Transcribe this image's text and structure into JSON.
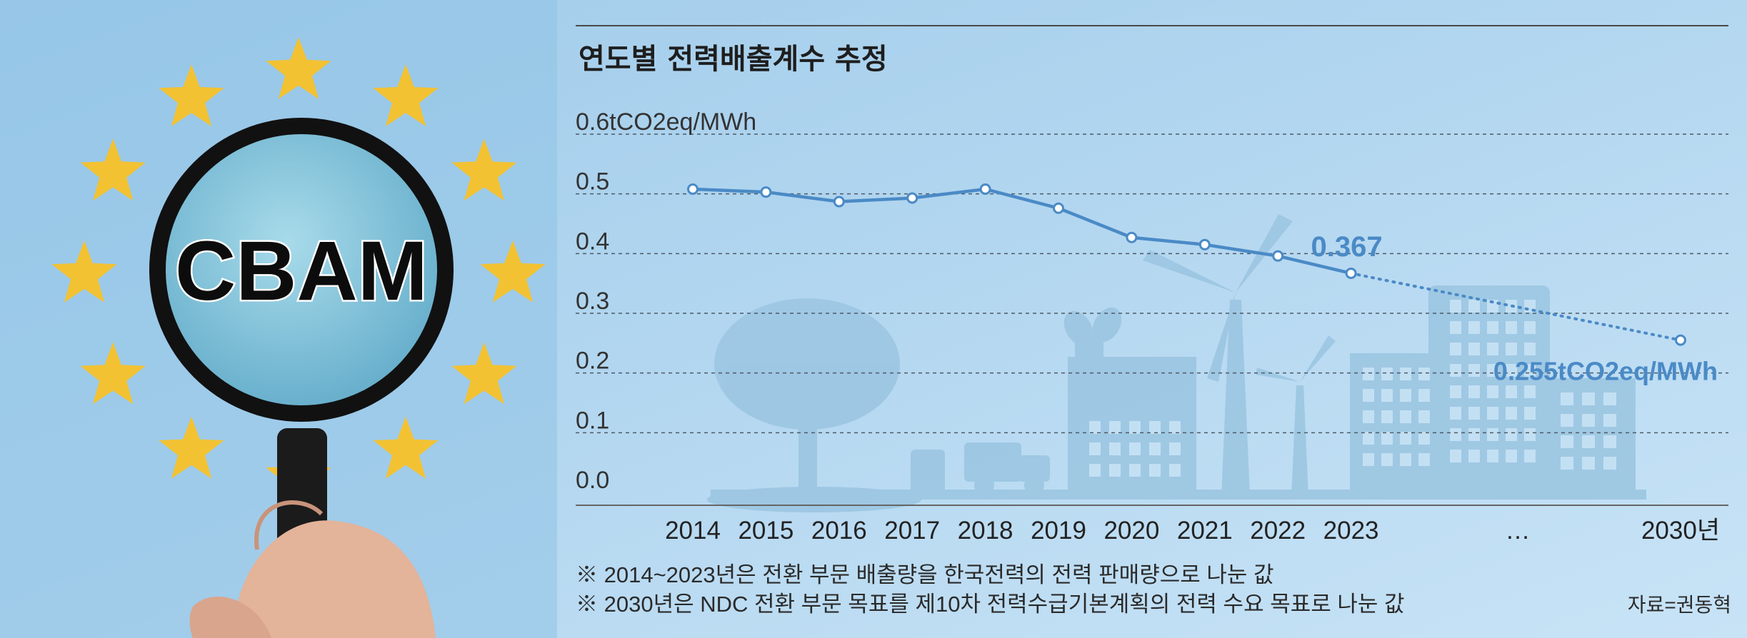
{
  "image": {
    "magnifier_text": "CBAM",
    "star_color": "#f2c233"
  },
  "chart_data": {
    "type": "line",
    "title": "연도별 전력배출계수 추정",
    "y_unit_label": "0.6tCO2eq/MWh",
    "ylim": [
      0,
      0.6
    ],
    "y_ticks": [
      "0.0",
      "0.1",
      "0.2",
      "0.3",
      "0.4",
      "0.5",
      "0.6tCO2eq/MWh"
    ],
    "y_tick_values": [
      0,
      0.1,
      0.2,
      0.3,
      0.4,
      0.5,
      0.6
    ],
    "x_labels": [
      "2014",
      "2015",
      "2016",
      "2017",
      "2018",
      "2019",
      "2020",
      "2021",
      "2022",
      "2023",
      "…",
      "2030년"
    ],
    "x": [
      2014,
      2015,
      2016,
      2017,
      2018,
      2019,
      2020,
      2021,
      2022,
      2023,
      2030
    ],
    "series": [
      {
        "values": [
          0.508,
          0.503,
          0.487,
          0.493,
          0.508,
          0.476,
          0.427,
          0.415,
          0.396,
          0.367,
          0.255
        ],
        "projected_from_index": 9
      }
    ],
    "annotations": [
      {
        "text": "0.367",
        "at_x": 2023
      },
      {
        "text": "0.255tCO2eq/MWh",
        "at_x": 2030
      }
    ],
    "grid": true,
    "line_color": "#4a8ac6"
  },
  "notes": [
    "※ 2014~2023년은 전환 부문 배출량을 한국전력의 전력 판매량으로 나눈 값",
    "※ 2030년은 NDC 전환 부문 목표를 제10차 전력수급기본계획의 전력 수요 목표로 나눈 값"
  ],
  "source": "자료=권동혁"
}
